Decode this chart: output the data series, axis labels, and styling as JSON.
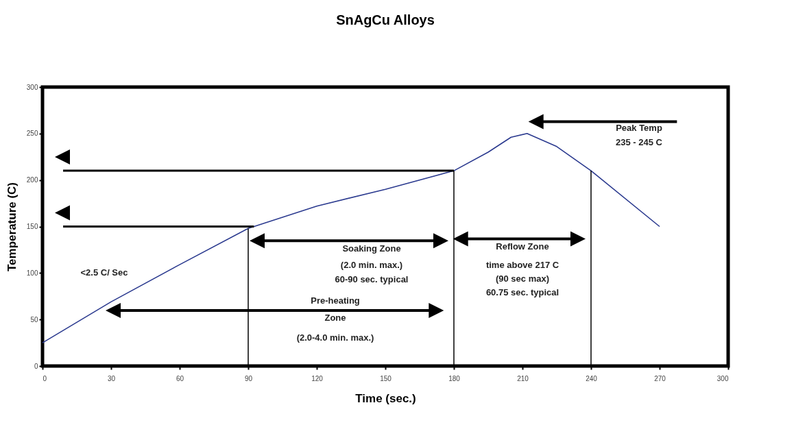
{
  "chart_data": {
    "type": "line",
    "title": "SnAgCu Alloys",
    "xlabel": "Time (sec.)",
    "ylabel": "Temperature (C)",
    "x": [
      0,
      30,
      60,
      90,
      120,
      150,
      180,
      195,
      205,
      212,
      225,
      240,
      270
    ],
    "series": [
      {
        "color": "#2b3a8f",
        "values": [
          25,
          69,
          109,
          148,
          172,
          190,
          210,
          230,
          246,
          250,
          236,
          210,
          150
        ]
      }
    ],
    "xlim": [
      0,
      300
    ],
    "xticks": [
      0,
      30,
      60,
      90,
      120,
      150,
      180,
      210,
      240,
      270,
      300
    ],
    "ylim": [
      0,
      300
    ],
    "yticks": [
      0,
      50,
      100,
      150,
      200,
      250,
      300
    ],
    "grid": false,
    "marker": "none",
    "line_style": "solid",
    "ref_lines": [
      {
        "axis": "y",
        "value": 210
      },
      {
        "axis": "y",
        "value": 150
      },
      {
        "axis": "x",
        "value": 90
      },
      {
        "axis": "x",
        "value": 180
      },
      {
        "axis": "x",
        "value": 240
      }
    ],
    "annotations": [
      "<2.5 C/ Sec",
      "Soaking Zone",
      "(2.0 min. max.)",
      "60-90 sec. typical",
      "Pre-heating",
      "Zone",
      "(2.0-4.0 min. max.)",
      "Reflow Zone",
      "time above 217 C",
      "(90 sec max)",
      "60.75 sec. typical",
      "Peak Temp",
      "235 - 245 C"
    ]
  }
}
